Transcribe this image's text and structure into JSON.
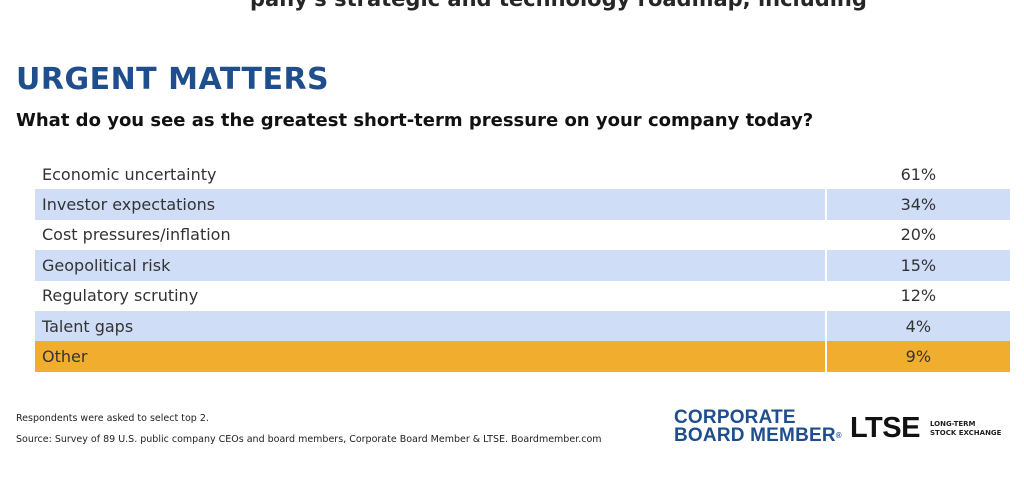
{
  "header": {
    "cut_text": "pany's strategic and technology roadmap, including"
  },
  "chart_data": {
    "type": "table",
    "title": "URGENT MATTERS",
    "subtitle": "What do you see as the greatest short-term pressure on your company today?",
    "categories": [
      "Economic uncertainty",
      "Investor expectations",
      "Cost pressures/inflation",
      "Geopolitical risk",
      "Regulatory scrutiny",
      "Talent gaps",
      "Other"
    ],
    "values": [
      61,
      34,
      20,
      15,
      12,
      4,
      9
    ],
    "value_labels": [
      "61%",
      "34%",
      "20%",
      "15%",
      "12%",
      "4%",
      "9%"
    ],
    "colors": {
      "title": "#1f4e8c",
      "shade": "#cfddf7",
      "highlight": "#f0ad2e"
    }
  },
  "footer": {
    "note": "Respondents were asked to select top 2.",
    "source": "Source: Survey of 89 U.S. public company CEOs and board members, Corporate Board Member & LTSE. Boardmember.com",
    "logo_cbm_line1": "CORPORATE",
    "logo_cbm_line2": "BOARD MEMBER",
    "logo_cbm_tm": "®",
    "logo_ltse": "LTSE",
    "logo_ltse_sub1": "LONG-TERM",
    "logo_ltse_sub2": "STOCK EXCHANGE"
  }
}
